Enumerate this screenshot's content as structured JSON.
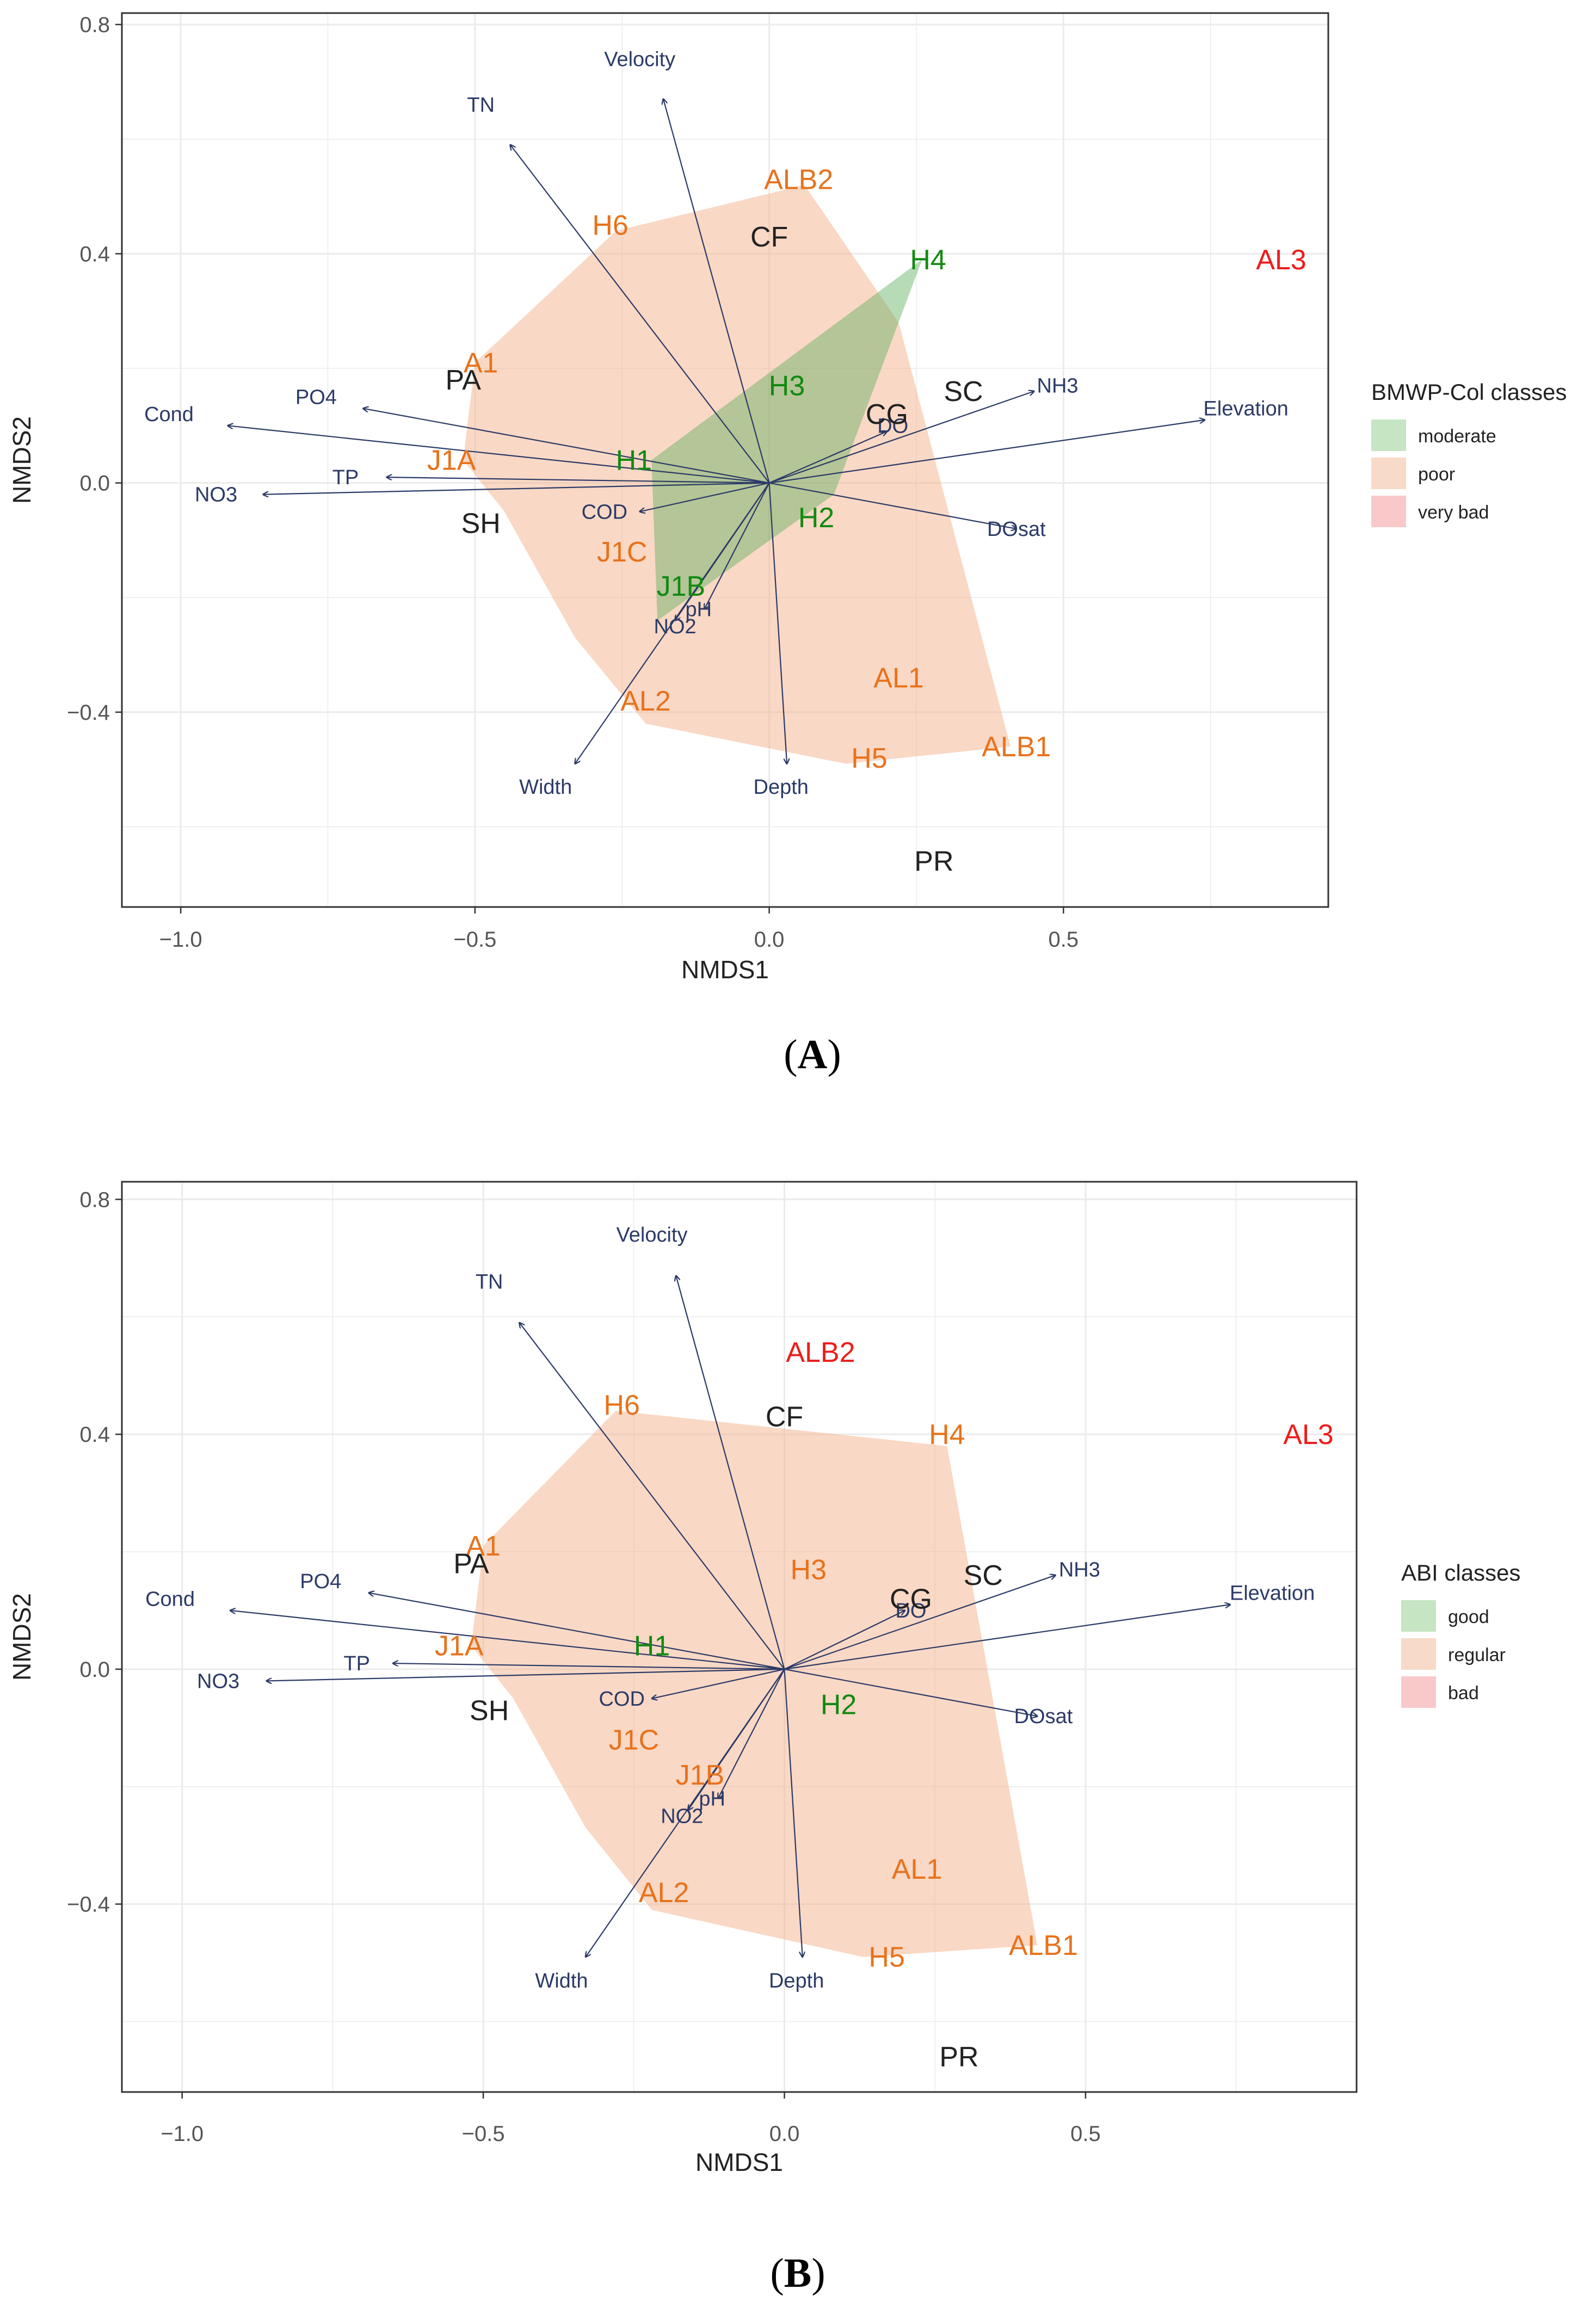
{
  "colors": {
    "arrow": "#2b3a67",
    "grid": "#ebebeb",
    "frame": "#333333",
    "site_green": "#128a12",
    "site_orange": "#e8721c",
    "site_red": "#ee1c1c",
    "site_black": "#222222"
  },
  "chart_data": [
    {
      "type": "scatter",
      "panel_label": "(A)",
      "xlabel": "NMDS1",
      "ylabel": "NMDS2",
      "xlim": [
        -1.1,
        0.95
      ],
      "ylim": [
        -0.74,
        0.82
      ],
      "x_ticks": [
        -1.0,
        -0.5,
        0.0,
        0.5
      ],
      "x_tick_labels": [
        "−1.0",
        "−0.5",
        "0.0",
        "0.5"
      ],
      "y_ticks": [
        -0.4,
        0.0,
        0.4,
        0.8
      ],
      "y_tick_labels": [
        "−0.4",
        "0.0",
        "0.4",
        "0.8"
      ],
      "grid": true,
      "legend": {
        "title": "BMWP-Col classes",
        "position": "right",
        "entries": [
          {
            "label": "moderate",
            "color": "#c6e5c3"
          },
          {
            "label": "poor",
            "color": "#f8dac8"
          },
          {
            "label": "very bad",
            "color": "#f9c9c9"
          }
        ]
      },
      "hulls": [
        {
          "class": "poor",
          "fill": "rgba(244,178,140,0.50)",
          "points": [
            [
              -0.26,
              0.44
            ],
            [
              0.06,
              0.52
            ],
            [
              0.22,
              0.28
            ],
            [
              0.41,
              -0.46
            ],
            [
              0.13,
              -0.49
            ],
            [
              -0.21,
              -0.42
            ],
            [
              -0.33,
              -0.27
            ],
            [
              -0.45,
              -0.05
            ],
            [
              -0.52,
              0.04
            ],
            [
              -0.5,
              0.21
            ]
          ]
        },
        {
          "class": "moderate",
          "fill": "rgba(96,176,96,0.45)",
          "points": [
            [
              0.26,
              0.39
            ],
            [
              0.11,
              -0.02
            ],
            [
              -0.19,
              -0.24
            ],
            [
              -0.2,
              0.04
            ]
          ]
        }
      ],
      "env_vectors": [
        {
          "label": "Velocity",
          "x": -0.18,
          "y": 0.67,
          "lx": -0.22,
          "ly": 0.74
        },
        {
          "label": "TN",
          "x": -0.44,
          "y": 0.59,
          "lx": -0.49,
          "ly": 0.66
        },
        {
          "label": "Cond",
          "x": -0.92,
          "y": 0.1,
          "lx": -1.02,
          "ly": 0.12
        },
        {
          "label": "PO4",
          "x": -0.69,
          "y": 0.13,
          "lx": -0.77,
          "ly": 0.15
        },
        {
          "label": "TP",
          "x": -0.65,
          "y": 0.01,
          "lx": -0.72,
          "ly": 0.01
        },
        {
          "label": "NO3",
          "x": -0.86,
          "y": -0.02,
          "lx": -0.94,
          "ly": -0.02
        },
        {
          "label": "COD",
          "x": -0.22,
          "y": -0.05,
          "lx": -0.28,
          "ly": -0.05
        },
        {
          "label": "NO2",
          "x": -0.16,
          "y": -0.24,
          "lx": -0.16,
          "ly": -0.25
        },
        {
          "label": "pH",
          "x": -0.11,
          "y": -0.22,
          "lx": -0.12,
          "ly": -0.22
        },
        {
          "label": "Width",
          "x": -0.33,
          "y": -0.49,
          "lx": -0.38,
          "ly": -0.53
        },
        {
          "label": "Depth",
          "x": 0.03,
          "y": -0.49,
          "lx": 0.02,
          "ly": -0.53
        },
        {
          "label": "DO",
          "x": 0.2,
          "y": 0.09,
          "lx": 0.21,
          "ly": 0.1
        },
        {
          "label": "NH3",
          "x": 0.45,
          "y": 0.16,
          "lx": 0.49,
          "ly": 0.17
        },
        {
          "label": "Elevation",
          "x": 0.74,
          "y": 0.11,
          "lx": 0.81,
          "ly": 0.13
        },
        {
          "label": "DOsat",
          "x": 0.42,
          "y": -0.08,
          "lx": 0.42,
          "ly": -0.08
        }
      ],
      "sites": [
        {
          "label": "ALB2",
          "x": 0.05,
          "y": 0.53,
          "cls": "orange"
        },
        {
          "label": "H6",
          "x": -0.27,
          "y": 0.45,
          "cls": "orange"
        },
        {
          "label": "CF",
          "x": 0.0,
          "y": 0.43,
          "cls": "black"
        },
        {
          "label": "H4",
          "x": 0.27,
          "y": 0.39,
          "cls": "green"
        },
        {
          "label": "AL3",
          "x": 0.87,
          "y": 0.39,
          "cls": "red"
        },
        {
          "label": "A1",
          "x": -0.49,
          "y": 0.21,
          "cls": "orange"
        },
        {
          "label": "PA",
          "x": -0.52,
          "y": 0.18,
          "cls": "black"
        },
        {
          "label": "H3",
          "x": 0.03,
          "y": 0.17,
          "cls": "green"
        },
        {
          "label": "SC",
          "x": 0.33,
          "y": 0.16,
          "cls": "black"
        },
        {
          "label": "CG",
          "x": 0.2,
          "y": 0.12,
          "cls": "black"
        },
        {
          "label": "J1A",
          "x": -0.54,
          "y": 0.04,
          "cls": "orange"
        },
        {
          "label": "H1",
          "x": -0.23,
          "y": 0.04,
          "cls": "green"
        },
        {
          "label": "SH",
          "x": -0.49,
          "y": -0.07,
          "cls": "black"
        },
        {
          "label": "H2",
          "x": 0.08,
          "y": -0.06,
          "cls": "green"
        },
        {
          "label": "J1C",
          "x": -0.25,
          "y": -0.12,
          "cls": "orange"
        },
        {
          "label": "J1B",
          "x": -0.15,
          "y": -0.18,
          "cls": "green"
        },
        {
          "label": "AL1",
          "x": 0.22,
          "y": -0.34,
          "cls": "orange"
        },
        {
          "label": "AL2",
          "x": -0.21,
          "y": -0.38,
          "cls": "orange"
        },
        {
          "label": "ALB1",
          "x": 0.42,
          "y": -0.46,
          "cls": "orange"
        },
        {
          "label": "H5",
          "x": 0.17,
          "y": -0.48,
          "cls": "orange"
        },
        {
          "label": "PR",
          "x": 0.28,
          "y": -0.66,
          "cls": "black"
        }
      ]
    },
    {
      "type": "scatter",
      "panel_label": "(B)",
      "xlabel": "NMDS1",
      "ylabel": "NMDS2",
      "xlim": [
        -1.1,
        0.95
      ],
      "ylim": [
        -0.72,
        0.83
      ],
      "x_ticks": [
        -1.0,
        -0.5,
        0.0,
        0.5
      ],
      "x_tick_labels": [
        "−1.0",
        "−0.5",
        "0.0",
        "0.5"
      ],
      "y_ticks": [
        -0.4,
        0.0,
        0.4,
        0.8
      ],
      "y_tick_labels": [
        "−0.4",
        "0.0",
        "0.4",
        "0.8"
      ],
      "grid": true,
      "legend": {
        "title": "ABI classes",
        "position": "right",
        "entries": [
          {
            "label": "good",
            "color": "#c6e5c3"
          },
          {
            "label": "regular",
            "color": "#f8dac8"
          },
          {
            "label": "bad",
            "color": "#f9c9c9"
          }
        ]
      },
      "hulls": [
        {
          "class": "regular",
          "fill": "rgba(244,178,140,0.50)",
          "points": [
            [
              -0.28,
              0.44
            ],
            [
              0.27,
              0.38
            ],
            [
              0.42,
              -0.47
            ],
            [
              0.13,
              -0.49
            ],
            [
              -0.22,
              -0.41
            ],
            [
              -0.33,
              -0.27
            ],
            [
              -0.45,
              -0.05
            ],
            [
              -0.52,
              0.04
            ],
            [
              -0.5,
              0.21
            ]
          ]
        }
      ],
      "env_vectors": [
        {
          "label": "Velocity",
          "x": -0.18,
          "y": 0.67,
          "lx": -0.22,
          "ly": 0.74
        },
        {
          "label": "TN",
          "x": -0.44,
          "y": 0.59,
          "lx": -0.49,
          "ly": 0.66
        },
        {
          "label": "Cond",
          "x": -0.92,
          "y": 0.1,
          "lx": -1.02,
          "ly": 0.12
        },
        {
          "label": "PO4",
          "x": -0.69,
          "y": 0.13,
          "lx": -0.77,
          "ly": 0.15
        },
        {
          "label": "TP",
          "x": -0.65,
          "y": 0.01,
          "lx": -0.71,
          "ly": 0.01
        },
        {
          "label": "NO3",
          "x": -0.86,
          "y": -0.02,
          "lx": -0.94,
          "ly": -0.02
        },
        {
          "label": "COD",
          "x": -0.22,
          "y": -0.05,
          "lx": -0.27,
          "ly": -0.05
        },
        {
          "label": "NO2",
          "x": -0.16,
          "y": -0.24,
          "lx": -0.17,
          "ly": -0.25
        },
        {
          "label": "pH",
          "x": -0.11,
          "y": -0.22,
          "lx": -0.12,
          "ly": -0.22
        },
        {
          "label": "Width",
          "x": -0.33,
          "y": -0.49,
          "lx": -0.37,
          "ly": -0.53
        },
        {
          "label": "Depth",
          "x": 0.03,
          "y": -0.49,
          "lx": 0.02,
          "ly": -0.53
        },
        {
          "label": "DO",
          "x": 0.2,
          "y": 0.1,
          "lx": 0.21,
          "ly": 0.1
        },
        {
          "label": "NH3",
          "x": 0.45,
          "y": 0.16,
          "lx": 0.49,
          "ly": 0.17
        },
        {
          "label": "Elevation",
          "x": 0.74,
          "y": 0.11,
          "lx": 0.81,
          "ly": 0.13
        },
        {
          "label": "DOsat",
          "x": 0.42,
          "y": -0.08,
          "lx": 0.43,
          "ly": -0.08
        }
      ],
      "sites": [
        {
          "label": "ALB2",
          "x": 0.06,
          "y": 0.54,
          "cls": "red"
        },
        {
          "label": "H6",
          "x": -0.27,
          "y": 0.45,
          "cls": "orange"
        },
        {
          "label": "CF",
          "x": 0.0,
          "y": 0.43,
          "cls": "black"
        },
        {
          "label": "H4",
          "x": 0.27,
          "y": 0.4,
          "cls": "orange"
        },
        {
          "label": "AL3",
          "x": 0.87,
          "y": 0.4,
          "cls": "red"
        },
        {
          "label": "A1",
          "x": -0.5,
          "y": 0.21,
          "cls": "orange"
        },
        {
          "label": "PA",
          "x": -0.52,
          "y": 0.18,
          "cls": "black"
        },
        {
          "label": "H3",
          "x": 0.04,
          "y": 0.17,
          "cls": "orange"
        },
        {
          "label": "SC",
          "x": 0.33,
          "y": 0.16,
          "cls": "black"
        },
        {
          "label": "CG",
          "x": 0.21,
          "y": 0.12,
          "cls": "black"
        },
        {
          "label": "J1A",
          "x": -0.54,
          "y": 0.04,
          "cls": "orange"
        },
        {
          "label": "H1",
          "x": -0.22,
          "y": 0.04,
          "cls": "green"
        },
        {
          "label": "SH",
          "x": -0.49,
          "y": -0.07,
          "cls": "black"
        },
        {
          "label": "H2",
          "x": 0.09,
          "y": -0.06,
          "cls": "green"
        },
        {
          "label": "J1C",
          "x": -0.25,
          "y": -0.12,
          "cls": "orange"
        },
        {
          "label": "J1B",
          "x": -0.14,
          "y": -0.18,
          "cls": "orange"
        },
        {
          "label": "AL1",
          "x": 0.22,
          "y": -0.34,
          "cls": "orange"
        },
        {
          "label": "AL2",
          "x": -0.2,
          "y": -0.38,
          "cls": "orange"
        },
        {
          "label": "ALB1",
          "x": 0.43,
          "y": -0.47,
          "cls": "orange"
        },
        {
          "label": "H5",
          "x": 0.17,
          "y": -0.49,
          "cls": "orange"
        },
        {
          "label": "PR",
          "x": 0.29,
          "y": -0.66,
          "cls": "black"
        }
      ]
    }
  ]
}
